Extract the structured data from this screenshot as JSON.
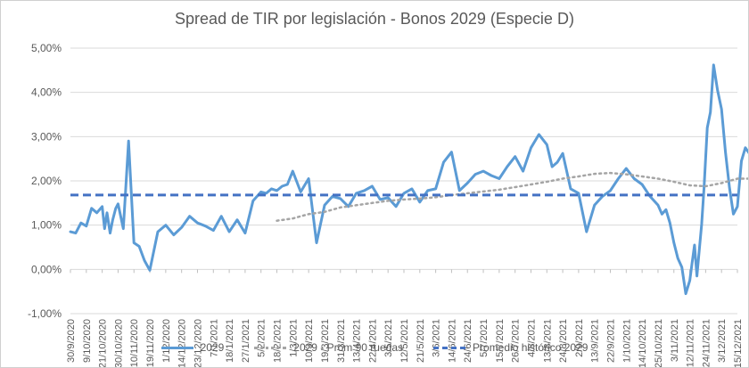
{
  "chart_data": {
    "type": "line",
    "title": "Spread de TIR por legislación - Bonos 2029 (Especie D)",
    "xlabel": "",
    "ylabel": "",
    "ylim": [
      -0.01,
      0.05
    ],
    "y_ticks": [
      "-1,00%",
      "0,00%",
      "1,00%",
      "2,00%",
      "3,00%",
      "4,00%",
      "5,00%"
    ],
    "grid": true,
    "legend_position": "bottom",
    "x_tick_labels": [
      "30/9/2020",
      "9/10/2020",
      "21/10/2020",
      "30/10/2020",
      "10/11/2020",
      "19/11/2020",
      "1/12/2020",
      "14/12/2020",
      "23/12/2020",
      "7/1/2021",
      "18/1/2021",
      "27/1/2021",
      "5/2/2021",
      "18/2/2021",
      "1/3/2021",
      "10/3/2021",
      "19/3/2021",
      "31/3/2021",
      "13/4/2021",
      "22/4/2021",
      "3/5/2021",
      "12/5/2021",
      "21/5/2021",
      "3/6/2021",
      "14/6/2021",
      "24/6/2021",
      "5/7/2021",
      "15/7/2021",
      "26/7/2021",
      "4/8/2021",
      "13/8/2021",
      "24/8/2021",
      "2/9/2021",
      "13/9/2021",
      "22/9/2021",
      "1/10/2021",
      "14/10/2021",
      "25/10/2021",
      "3/11/2021",
      "12/11/2021",
      "24/11/2021",
      "3/12/2021",
      "15/12/2021"
    ],
    "series": [
      {
        "name": "2029",
        "color": "#5B9BD5",
        "style": "solid",
        "x": [
          0,
          0.33,
          0.66,
          1,
          1.33,
          1.66,
          2,
          2.15,
          2.3,
          2.5,
          2.66,
          2.85,
          3,
          3.33,
          3.66,
          4,
          4.33,
          4.66,
          5,
          5.5,
          6,
          6.5,
          7,
          7.5,
          8,
          8.5,
          9,
          9.5,
          10,
          10.5,
          11,
          11.5,
          12,
          12.33,
          12.66,
          13,
          13.33,
          13.66,
          14,
          14.5,
          15,
          15.5,
          16,
          16.5,
          17,
          17.5,
          18,
          18.5,
          19,
          19.5,
          20,
          20.5,
          21,
          21.5,
          22,
          22.5,
          23,
          23.5,
          24,
          24.5,
          25,
          25.5,
          26,
          26.5,
          27,
          27.5,
          28,
          28.5,
          29,
          29.5,
          30,
          30.33,
          30.66,
          31,
          31.5,
          32,
          32.5,
          33,
          33.5,
          34,
          34.5,
          35,
          35.5,
          36,
          36.5,
          37,
          37.25,
          37.5,
          37.75,
          38,
          38.25,
          38.5,
          38.75,
          39,
          39.15,
          39.3,
          39.45,
          39.6,
          39.75,
          39.9,
          40.1,
          40.3,
          40.5,
          40.75,
          41,
          41.25,
          41.5,
          41.75,
          42,
          42.25,
          42.5,
          42.75,
          43
        ],
        "y": [
          0.0085,
          0.0082,
          0.0105,
          0.0098,
          0.0138,
          0.0128,
          0.0142,
          0.0092,
          0.0128,
          0.0082,
          0.0112,
          0.0138,
          0.0148,
          0.0092,
          0.029,
          0.006,
          0.0052,
          0.002,
          -0.0002,
          0.0085,
          0.01,
          0.0078,
          0.0095,
          0.012,
          0.0105,
          0.0098,
          0.0088,
          0.012,
          0.0085,
          0.0112,
          0.0082,
          0.0155,
          0.0175,
          0.0172,
          0.0182,
          0.0178,
          0.0188,
          0.0192,
          0.0222,
          0.0175,
          0.0205,
          0.006,
          0.0145,
          0.0165,
          0.016,
          0.0142,
          0.0172,
          0.0178,
          0.0188,
          0.0158,
          0.0162,
          0.0142,
          0.0172,
          0.0182,
          0.0152,
          0.0178,
          0.0182,
          0.0242,
          0.0265,
          0.0178,
          0.0195,
          0.0215,
          0.0222,
          0.0212,
          0.0205,
          0.0232,
          0.0255,
          0.0222,
          0.0275,
          0.0305,
          0.0282,
          0.0232,
          0.0242,
          0.0262,
          0.0182,
          0.0172,
          0.0085,
          0.0145,
          0.0165,
          0.0178,
          0.0205,
          0.0228,
          0.0205,
          0.0192,
          0.0165,
          0.0145,
          0.0125,
          0.0135,
          0.0105,
          0.006,
          0.0025,
          0.0005,
          -0.0055,
          -0.0025,
          0.0015,
          0.0055,
          -0.0015,
          0.0045,
          0.0102,
          0.0185,
          0.032,
          0.0355,
          0.0462,
          0.0405,
          0.0362,
          0.0265,
          0.0185,
          0.0125,
          0.0142,
          0.0245,
          0.0275,
          0.0262,
          0.0282
        ]
      },
      {
        "name": "2029 - Prom 90 ruedas",
        "color": "#A5A5A5",
        "style": "dotted",
        "x": [
          13,
          14,
          15,
          16,
          17,
          18,
          19,
          20,
          21,
          22,
          23,
          24,
          25,
          26,
          27,
          28,
          29,
          30,
          31,
          32,
          33,
          34,
          35,
          36,
          37,
          38,
          39,
          40,
          41,
          42,
          43
        ],
        "y": [
          0.011,
          0.0115,
          0.0125,
          0.013,
          0.014,
          0.0145,
          0.015,
          0.0155,
          0.0158,
          0.016,
          0.0163,
          0.0168,
          0.0172,
          0.0176,
          0.018,
          0.0186,
          0.0192,
          0.0198,
          0.0205,
          0.021,
          0.0216,
          0.0218,
          0.0215,
          0.021,
          0.0205,
          0.0198,
          0.019,
          0.0188,
          0.0195,
          0.0205,
          0.0205
        ]
      },
      {
        "name": "Promedio histórico 2029",
        "color": "#4472C4",
        "style": "dashed",
        "constant": 0.0168
      }
    ]
  }
}
